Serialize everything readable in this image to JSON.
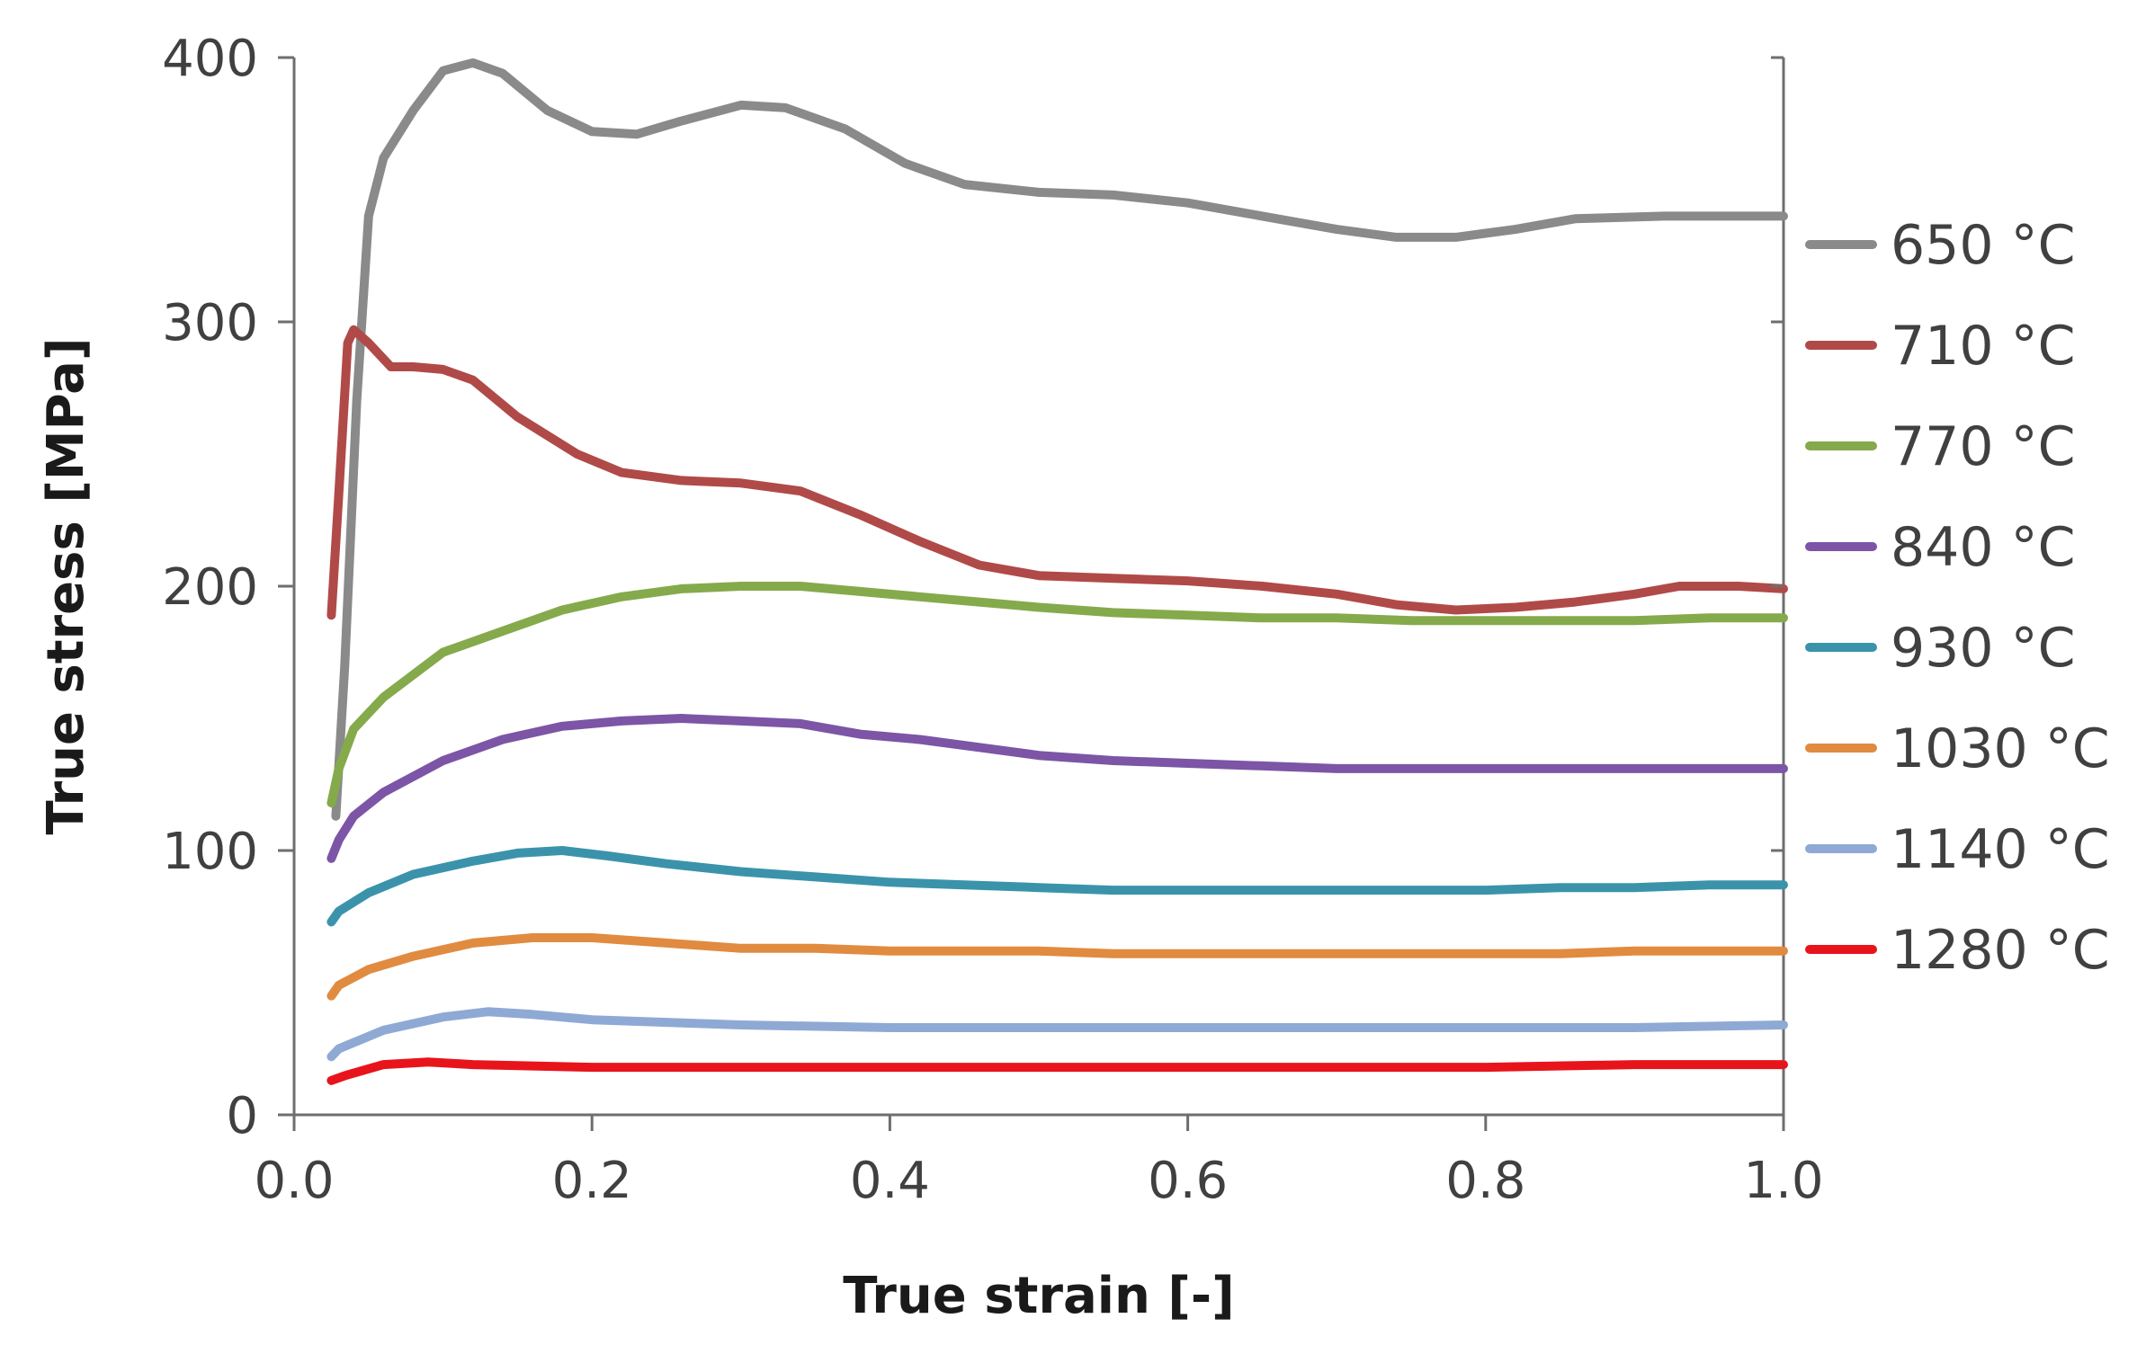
{
  "chart_data": {
    "type": "line",
    "xlabel": "True strain [-]",
    "ylabel": "True stress [MPa]",
    "xlim": [
      0,
      1.0
    ],
    "ylim": [
      0,
      400
    ],
    "xticks": [
      "0.0",
      "0.2",
      "0.4",
      "0.6",
      "0.8",
      "1.0"
    ],
    "yticks": [
      "0",
      "100",
      "200",
      "300",
      "400"
    ],
    "grid": false,
    "legend_position": "right",
    "series": [
      {
        "name": "650 °C",
        "color": "#8a8a8a",
        "points": [
          [
            0.028,
            113
          ],
          [
            0.034,
            170
          ],
          [
            0.042,
            270
          ],
          [
            0.05,
            340
          ],
          [
            0.06,
            362
          ],
          [
            0.08,
            380
          ],
          [
            0.1,
            395
          ],
          [
            0.12,
            398
          ],
          [
            0.14,
            394
          ],
          [
            0.17,
            380
          ],
          [
            0.2,
            372
          ],
          [
            0.23,
            371
          ],
          [
            0.26,
            376
          ],
          [
            0.3,
            382
          ],
          [
            0.33,
            381
          ],
          [
            0.37,
            373
          ],
          [
            0.41,
            360
          ],
          [
            0.45,
            352
          ],
          [
            0.5,
            349
          ],
          [
            0.55,
            348
          ],
          [
            0.6,
            345
          ],
          [
            0.65,
            340
          ],
          [
            0.7,
            335
          ],
          [
            0.74,
            332
          ],
          [
            0.78,
            332
          ],
          [
            0.82,
            335
          ],
          [
            0.86,
            339
          ],
          [
            0.92,
            340
          ],
          [
            1.0,
            340
          ]
        ]
      },
      {
        "name": "710 °C",
        "color": "#b04a48",
        "points": [
          [
            0.025,
            189
          ],
          [
            0.03,
            235
          ],
          [
            0.036,
            292
          ],
          [
            0.04,
            297
          ],
          [
            0.05,
            292
          ],
          [
            0.065,
            283
          ],
          [
            0.08,
            283
          ],
          [
            0.1,
            282
          ],
          [
            0.12,
            278
          ],
          [
            0.15,
            264
          ],
          [
            0.19,
            250
          ],
          [
            0.22,
            243
          ],
          [
            0.26,
            240
          ],
          [
            0.3,
            239
          ],
          [
            0.34,
            236
          ],
          [
            0.38,
            227
          ],
          [
            0.42,
            217
          ],
          [
            0.46,
            208
          ],
          [
            0.5,
            204
          ],
          [
            0.55,
            203
          ],
          [
            0.6,
            202
          ],
          [
            0.65,
            200
          ],
          [
            0.7,
            197
          ],
          [
            0.74,
            193
          ],
          [
            0.78,
            191
          ],
          [
            0.82,
            192
          ],
          [
            0.86,
            194
          ],
          [
            0.9,
            197
          ],
          [
            0.93,
            200
          ],
          [
            0.97,
            200
          ],
          [
            1.0,
            199
          ]
        ]
      },
      {
        "name": "770 °C",
        "color": "#85aa4b",
        "points": [
          [
            0.025,
            118
          ],
          [
            0.03,
            131
          ],
          [
            0.04,
            146
          ],
          [
            0.06,
            158
          ],
          [
            0.1,
            175
          ],
          [
            0.14,
            183
          ],
          [
            0.18,
            191
          ],
          [
            0.22,
            196
          ],
          [
            0.26,
            199
          ],
          [
            0.3,
            200
          ],
          [
            0.34,
            200
          ],
          [
            0.38,
            198
          ],
          [
            0.42,
            196
          ],
          [
            0.46,
            194
          ],
          [
            0.5,
            192
          ],
          [
            0.55,
            190
          ],
          [
            0.6,
            189
          ],
          [
            0.65,
            188
          ],
          [
            0.7,
            188
          ],
          [
            0.75,
            187
          ],
          [
            0.8,
            187
          ],
          [
            0.85,
            187
          ],
          [
            0.9,
            187
          ],
          [
            0.95,
            188
          ],
          [
            1.0,
            188
          ]
        ]
      },
      {
        "name": "840 °C",
        "color": "#7c55a6",
        "points": [
          [
            0.025,
            97
          ],
          [
            0.03,
            104
          ],
          [
            0.04,
            113
          ],
          [
            0.06,
            122
          ],
          [
            0.1,
            134
          ],
          [
            0.14,
            142
          ],
          [
            0.18,
            147
          ],
          [
            0.22,
            149
          ],
          [
            0.26,
            150
          ],
          [
            0.3,
            149
          ],
          [
            0.34,
            148
          ],
          [
            0.38,
            144
          ],
          [
            0.42,
            142
          ],
          [
            0.46,
            139
          ],
          [
            0.5,
            136
          ],
          [
            0.55,
            134
          ],
          [
            0.6,
            133
          ],
          [
            0.65,
            132
          ],
          [
            0.7,
            131
          ],
          [
            0.75,
            131
          ],
          [
            0.8,
            131
          ],
          [
            0.85,
            131
          ],
          [
            0.9,
            131
          ],
          [
            0.95,
            131
          ],
          [
            1.0,
            131
          ]
        ]
      },
      {
        "name": "930 °C",
        "color": "#3b93ab",
        "points": [
          [
            0.025,
            73
          ],
          [
            0.03,
            77
          ],
          [
            0.05,
            84
          ],
          [
            0.08,
            91
          ],
          [
            0.12,
            96
          ],
          [
            0.15,
            99
          ],
          [
            0.18,
            100
          ],
          [
            0.21,
            98
          ],
          [
            0.25,
            95
          ],
          [
            0.3,
            92
          ],
          [
            0.35,
            90
          ],
          [
            0.4,
            88
          ],
          [
            0.45,
            87
          ],
          [
            0.5,
            86
          ],
          [
            0.55,
            85
          ],
          [
            0.6,
            85
          ],
          [
            0.65,
            85
          ],
          [
            0.7,
            85
          ],
          [
            0.75,
            85
          ],
          [
            0.8,
            85
          ],
          [
            0.85,
            86
          ],
          [
            0.9,
            86
          ],
          [
            0.95,
            87
          ],
          [
            1.0,
            87
          ]
        ]
      },
      {
        "name": "1030 °C",
        "color": "#e08b40",
        "points": [
          [
            0.025,
            45
          ],
          [
            0.03,
            49
          ],
          [
            0.05,
            55
          ],
          [
            0.08,
            60
          ],
          [
            0.12,
            65
          ],
          [
            0.16,
            67
          ],
          [
            0.2,
            67
          ],
          [
            0.25,
            65
          ],
          [
            0.3,
            63
          ],
          [
            0.35,
            63
          ],
          [
            0.4,
            62
          ],
          [
            0.45,
            62
          ],
          [
            0.5,
            62
          ],
          [
            0.55,
            61
          ],
          [
            0.6,
            61
          ],
          [
            0.65,
            61
          ],
          [
            0.7,
            61
          ],
          [
            0.75,
            61
          ],
          [
            0.8,
            61
          ],
          [
            0.85,
            61
          ],
          [
            0.9,
            62
          ],
          [
            0.95,
            62
          ],
          [
            1.0,
            62
          ]
        ]
      },
      {
        "name": "1140 °C",
        "color": "#8fa9d5",
        "points": [
          [
            0.025,
            22
          ],
          [
            0.03,
            25
          ],
          [
            0.06,
            32
          ],
          [
            0.1,
            37
          ],
          [
            0.13,
            39
          ],
          [
            0.16,
            38
          ],
          [
            0.2,
            36
          ],
          [
            0.25,
            35
          ],
          [
            0.3,
            34
          ],
          [
            0.4,
            33
          ],
          [
            0.5,
            33
          ],
          [
            0.6,
            33
          ],
          [
            0.7,
            33
          ],
          [
            0.8,
            33
          ],
          [
            0.9,
            33
          ],
          [
            1.0,
            34
          ]
        ]
      },
      {
        "name": "1280 °C",
        "color": "#e8141c",
        "points": [
          [
            0.025,
            13
          ],
          [
            0.035,
            15
          ],
          [
            0.06,
            19
          ],
          [
            0.09,
            20
          ],
          [
            0.12,
            19
          ],
          [
            0.2,
            18
          ],
          [
            0.3,
            18
          ],
          [
            0.4,
            18
          ],
          [
            0.5,
            18
          ],
          [
            0.6,
            18
          ],
          [
            0.7,
            18
          ],
          [
            0.8,
            18
          ],
          [
            0.9,
            19
          ],
          [
            1.0,
            19
          ]
        ]
      }
    ]
  }
}
